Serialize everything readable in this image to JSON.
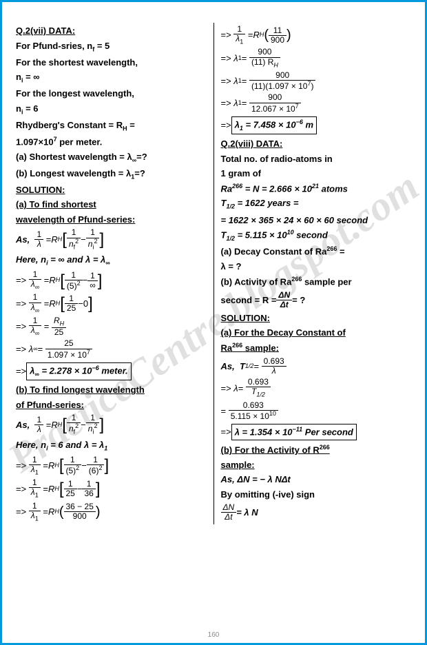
{
  "watermark": "PracticeCentre.blogspot.com",
  "pagenum": "160",
  "left": {
    "q_header": "Q.2(vii) DATA:",
    "d1": "For Pfund-sries, n",
    "d1b": " = 5",
    "d2": "For the shortest wavelength,",
    "d3": "n",
    "d3b": " = ∞",
    "d4": "For the longest wavelength,",
    "d5": "n",
    "d5b": " = 6",
    "d6": "Rhydberg's Constant = R",
    "d6b": " =",
    "d7": "1.097×10",
    "d7b": " per meter.",
    "d8": "(a) Shortest wavelength = λ",
    "d8b": "=?",
    "d9": "(b) Longest wavelength = λ",
    "d9b": "=?",
    "sol": "SOLUTION:",
    "aHdr1": "(a)  To   find    shortest",
    "aHdr2": "wavelength of Pfund-series:",
    "as1": "As,",
    "formula_1_over_lambda": "1",
    "formula_lambda": "λ",
    "RH": "R",
    "RH_sub": "H",
    "nf2": "n",
    "ni2": "n",
    "here1": "Here, n",
    "here1b": " = ∞ and λ = λ",
    "oneOverLinf": "1",
    "linf": "λ",
    "linf_sub": "∞",
    "five2": "(5)",
    "inf": "∞",
    "frac_1_25": "25",
    "zero": "0",
    "RH_25": "25",
    "num25": "25",
    "den_ryd": "1.097 × 10",
    "ans_a": "λ",
    "ans_a_val": " = 2.278 × 10",
    "ans_a_unit": " meter.",
    "bHdr1": "(b) To find longest wavelength",
    "bHdr2": "of Pfund-series:",
    "here2": "Here, n",
    "here2b": " = 6 and λ = λ",
    "l1": "λ",
    "l1_sub": "1",
    "six2": "(6)",
    "frac_1_36": "36",
    "num_36_25": "36 − 25",
    "den_900": "900"
  },
  "right": {
    "RH_11_900_n": "11",
    "RH_11_900_d": "900",
    "num900": "900",
    "den11RH": "(11) R",
    "num900b": "900",
    "den11ryd": "(11)(1.097 × 10",
    "den11ryd_b": ")",
    "num900c": "900",
    "den12067": "12.067 × 10",
    "ans_l1": "λ",
    "ans_l1_val": " = 7.458 × 10",
    "ans_l1_unit": " m",
    "q2_hdr": "Q.2(viii) DATA:",
    "q2_d1": "Total  no.  of  radio-atoms  in",
    "q2_d1b": "1 gram of",
    "ra": "Ra",
    "ra_sup": "266",
    "NeQ": " = N = 2.666 × 10",
    "NeQ_unit": " atoms",
    "t12": "T",
    "t12_sub": "1/2",
    "t12_v": " = 1622 years =",
    "t12_expand": "= 1622 × 365 × 24 × 60 × 60 sec",
    "t12_expand_unit": "ond",
    "t12_s": " = 5.115 × 10",
    "t12_s_unit": " sec",
    "q2_a": "(a) Decay Constant of Ra",
    "q2_a2": " =",
    "q2_a3": "λ = ?",
    "q2_b": "(b) Activity of Ra",
    "q2_b2": " sample per",
    "q2_b3": "second = R = ",
    "dN": "ΔN",
    "dt": "Δt",
    "q2_b4": " = ?",
    "sol2": "SOLUTION:",
    "s2_a1": "(a) For the Decay Constant of",
    "s2_a2": "Ra",
    "s2_a3": " sample:",
    "as2": "As,",
    "num0693": "0.693",
    "denL": "λ",
    "denT12": "T",
    "denT12_sub": "1/2",
    "den5115": "5.115 × 10",
    "ans_lambda": "λ = 1.354 × 10",
    "ans_lambda_unit": " Per sec",
    "ans_lambda_unit2": "ond",
    "s2_b1": "(b)  For  the  Activity  of  R",
    "s2_b2": "sample:",
    "as3": "As,    ΔN = − λ NΔt",
    "omit": "By omitting (-ive) sign",
    "finalFrac_n": "ΔN",
    "finalFrac_d": "Δt",
    "final_eq": " = λ N"
  }
}
